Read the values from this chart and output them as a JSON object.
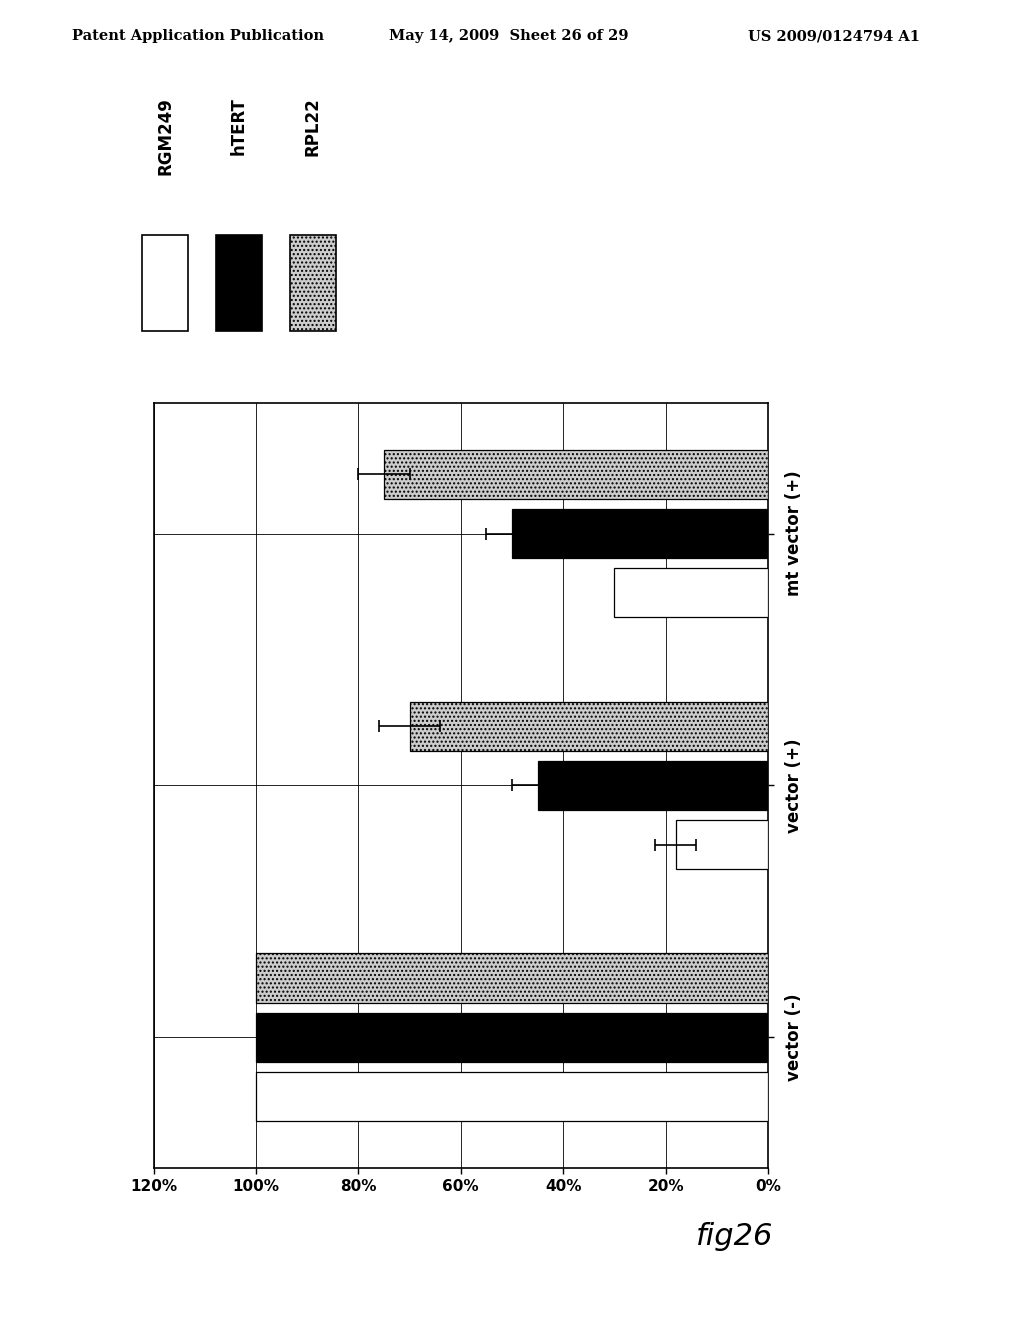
{
  "groups": [
    "vector (-)",
    "vector (+)",
    "mt vector (+)"
  ],
  "series_order": [
    "RPL22",
    "hTERT",
    "RGM249"
  ],
  "values": {
    "vector (-)": {
      "RPL22": 100,
      "hTERT": 100,
      "RGM249": 100
    },
    "vector (+)": {
      "RPL22": 70,
      "hTERT": 45,
      "RGM249": 18
    },
    "mt vector (+)": {
      "RPL22": 75,
      "hTERT": 50,
      "RGM249": 30
    }
  },
  "errors": {
    "vector (-)": {
      "RPL22": 0,
      "hTERT": 0,
      "RGM249": 0
    },
    "vector (+)": {
      "RPL22": 6,
      "hTERT": 5,
      "RGM249": 4
    },
    "mt vector (+)": {
      "RPL22": 5,
      "hTERT": 5,
      "RGM249": 0
    }
  },
  "bar_colors": {
    "RGM249": "#ffffff",
    "hTERT": "#000000",
    "RPL22": "#bbbbbb"
  },
  "bar_hatches": {
    "RGM249": "",
    "hTERT": "",
    "RPL22": "...."
  },
  "xlim_max": 120,
  "xtick_values": [
    0,
    20,
    40,
    60,
    80,
    100,
    120
  ],
  "xtick_labels": [
    "0%",
    "20%",
    "40%",
    "60%",
    "80%",
    "100%",
    "120%"
  ],
  "header_left": "Patent Application Publication",
  "header_mid": "May 14, 2009  Sheet 26 of 29",
  "header_right": "US 2009/0124794 A1",
  "legend_series": [
    "RGM249",
    "hTERT",
    "RPL22"
  ],
  "legend_colors": [
    "#ffffff",
    "#000000",
    "#bbbbbb"
  ],
  "legend_hatches": [
    "",
    "",
    "...."
  ],
  "bg_color": "#ffffff"
}
